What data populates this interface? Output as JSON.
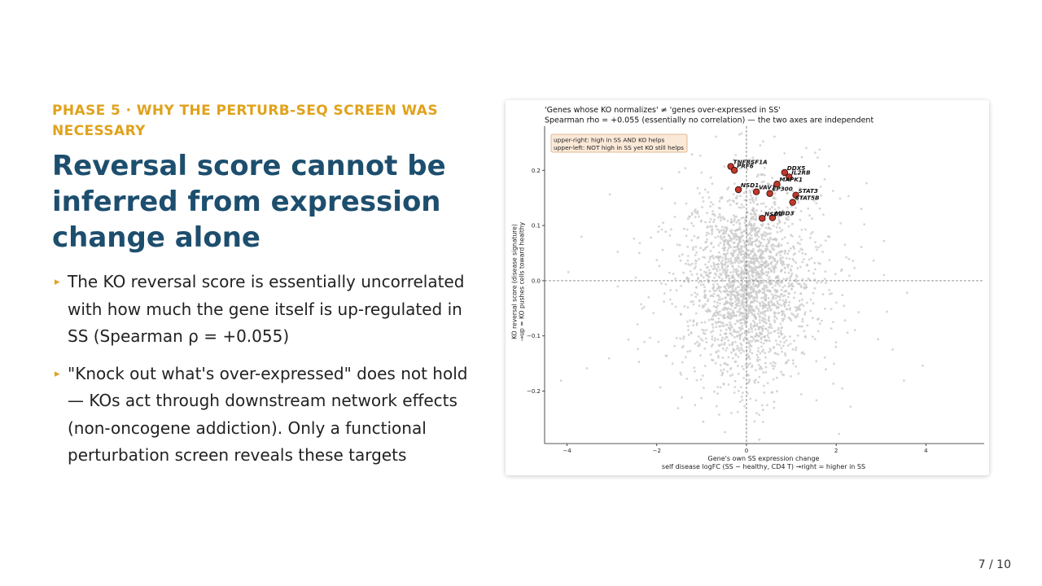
{
  "slide": {
    "kicker": "PHASE 5 · WHY THE PERTURB-SEQ SCREEN WAS NECESSARY",
    "title": "Reversal score cannot be inferred from expression change alone",
    "bullets": [
      "The KO reversal score is essentially uncorrelated with how much the gene itself is up-regulated in SS (Spearman ρ = +0.055)",
      "\"Knock out what's over-expressed\" does not hold — KOs act through downstream network effects (non-oncogene addiction). Only a functional perturbation screen reveals these targets"
    ],
    "page": "7 / 10"
  },
  "chart_data": {
    "type": "scatter",
    "title": "'Genes whose KO normalizes' ≠ 'genes over-expressed in SS'",
    "subtitle": "Spearman rho = +0.055 (essentially no correlation) — the two axes are independent",
    "xlabel": "Gene's own SS expression change",
    "xlabel2": "self disease logFC (SS − healthy, CD4 T)  →right = higher in SS",
    "ylabel": "KO reversal score (disease signature)",
    "ylabel2": "→up = KO pushes cells toward healthy",
    "xlim": [
      -4.5,
      5.3
    ],
    "ylim": [
      -0.295,
      0.28
    ],
    "xticks": [
      -4,
      -2,
      0,
      2,
      4
    ],
    "yticks": [
      -0.2,
      -0.1,
      0.0,
      0.1,
      0.2
    ],
    "xtick_labels": [
      "−4",
      "−2",
      "0",
      "2",
      "4"
    ],
    "ytick_labels": [
      "−0.2",
      "−0.1",
      "0.0",
      "0.1",
      "0.2"
    ],
    "grid": false,
    "reference_lines": {
      "x": 0,
      "y": 0,
      "style": "dashed"
    },
    "legend_box": {
      "position": "top-left",
      "lines": [
        "upper-right: high in SS AND KO helps",
        "upper-left: NOT high in SS yet KO still helps"
      ]
    },
    "background_points": {
      "description_count": 2300,
      "approx_x_mean": 0.05,
      "approx_x_sd": 0.75,
      "approx_y_mean": 0.0,
      "approx_y_sd": 0.085,
      "color": "#c8c8c8"
    },
    "highlighted_genes": [
      {
        "label": "TNFRSF1A",
        "x": -0.35,
        "y": 0.207
      },
      {
        "label": "PRF6",
        "x": -0.27,
        "y": 0.2
      },
      {
        "label": "NSD1",
        "x": -0.18,
        "y": 0.165
      },
      {
        "label": "VAV1",
        "x": 0.22,
        "y": 0.161
      },
      {
        "label": "EP300",
        "x": 0.52,
        "y": 0.158
      },
      {
        "label": "DDX5",
        "x": 0.85,
        "y": 0.196
      },
      {
        "label": "IL2RB",
        "x": 0.95,
        "y": 0.188
      },
      {
        "label": "MAPK1",
        "x": 0.68,
        "y": 0.175
      },
      {
        "label": "STAT3",
        "x": 1.1,
        "y": 0.155
      },
      {
        "label": "STAT5B",
        "x": 1.03,
        "y": 0.142
      },
      {
        "label": "NSD2",
        "x": 0.35,
        "y": 0.113
      },
      {
        "label": "MBD3",
        "x": 0.58,
        "y": 0.114
      }
    ],
    "highlight_color": "#c0392b"
  }
}
